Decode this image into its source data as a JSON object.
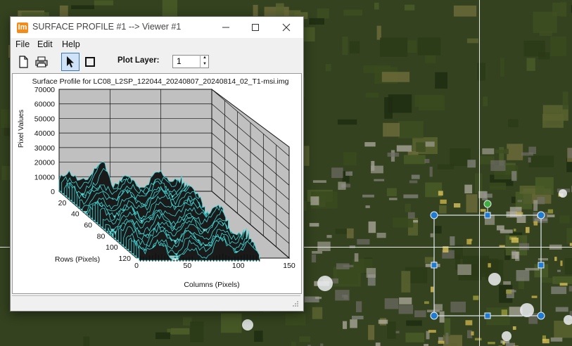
{
  "window": {
    "app_icon_text": "Im",
    "title": "SURFACE PROFILE #1 --> Viewer #1",
    "minimize_icon": "minimize-icon",
    "maximize_icon": "maximize-icon",
    "close_icon": "close-icon"
  },
  "menu": {
    "file": "File",
    "edit": "Edit",
    "help": "Help"
  },
  "toolbar": {
    "new_icon": "new-document-icon",
    "print_icon": "printer-icon",
    "select_icon": "arrow-pointer-icon",
    "box_icon": "rectangle-icon",
    "plot_layer_label": "Plot Layer:",
    "plot_layer_value": "1"
  },
  "chart_data": {
    "type": "surface-3d",
    "title": "Surface Profile for LC08_L2SP_122044_20240807_20240814_02_T1-msi.img",
    "zlabel": "Pixel Values",
    "xlabel": "Columns (Pixels)",
    "ylabel": "Rows (Pixels)",
    "z_ticks": [
      "0",
      "10000",
      "20000",
      "30000",
      "40000",
      "50000",
      "60000",
      "70000"
    ],
    "x_ticks": [
      "0",
      "50",
      "100",
      "150"
    ],
    "y_ticks": [
      "20",
      "40",
      "60",
      "80",
      "100",
      "120"
    ],
    "zlim": [
      0,
      70000
    ],
    "xlim": [
      0,
      150
    ],
    "ylim": [
      0,
      120
    ],
    "surface_color": "#3fd6d6",
    "wall_color": "#c0c0c0"
  }
}
